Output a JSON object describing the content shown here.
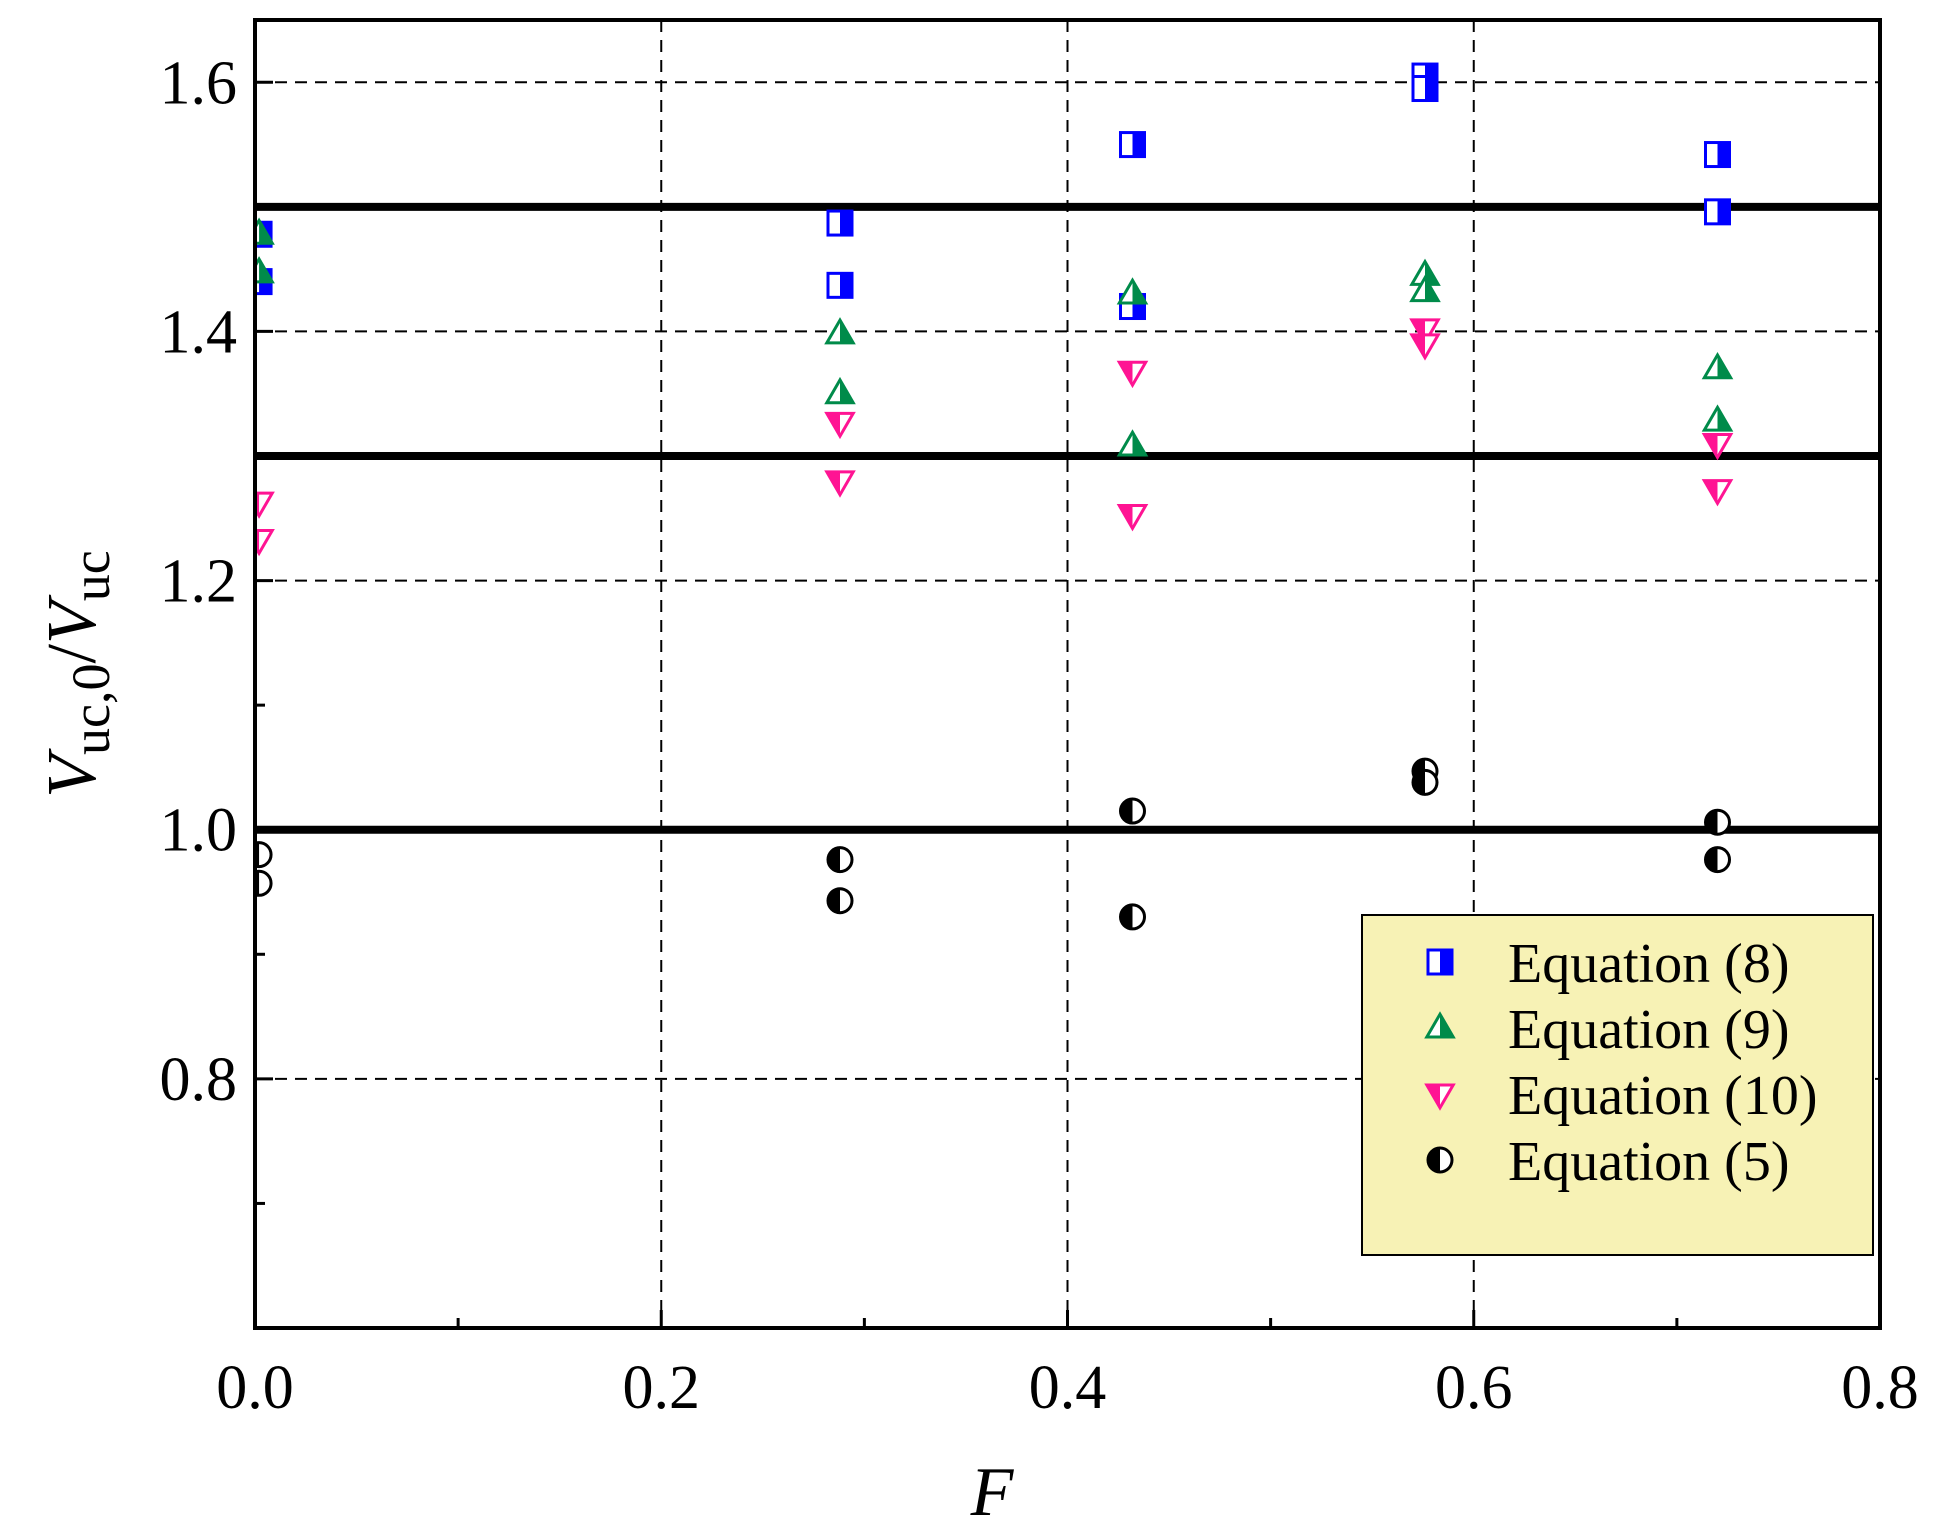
{
  "chart_data": {
    "type": "scatter",
    "x_range": [
      0,
      0.8
    ],
    "y_range": [
      0.6,
      1.65
    ],
    "x_ticks": [
      "0.0",
      "0.2",
      "0.4",
      "0.6",
      "0.8"
    ],
    "y_ticks": [
      "0.8",
      "1.0",
      "1.2",
      "1.4",
      "1.6"
    ],
    "xlabel": "F",
    "ylabel": {
      "main": "V",
      "sub1": "uc,0",
      "sep": "/",
      "main2": "V",
      "sub2": "uc"
    },
    "grid": "dashed",
    "reference_lines": [
      1.0,
      1.3,
      1.5
    ],
    "legend_position": "bottom-right",
    "legend_background": "#f7f2b5",
    "series": [
      {
        "name": "Equation (8)",
        "marker": "half-filled-square",
        "color": "#0000ff",
        "points": [
          [
            0.002,
            1.478
          ],
          [
            0.002,
            1.44
          ],
          [
            0.288,
            1.487
          ],
          [
            0.288,
            1.437
          ],
          [
            0.432,
            1.55
          ],
          [
            0.432,
            1.42
          ],
          [
            0.576,
            1.605
          ],
          [
            0.576,
            1.595
          ],
          [
            0.72,
            1.542
          ],
          [
            0.72,
            1.496
          ]
        ]
      },
      {
        "name": "Equation (9)",
        "marker": "half-filled-triangle-up",
        "color": "#008b4a",
        "points": [
          [
            0.002,
            1.478
          ],
          [
            0.002,
            1.447
          ],
          [
            0.288,
            1.398
          ],
          [
            0.288,
            1.35
          ],
          [
            0.432,
            1.43
          ],
          [
            0.432,
            1.308
          ],
          [
            0.576,
            1.445
          ],
          [
            0.576,
            1.432
          ],
          [
            0.72,
            1.37
          ],
          [
            0.72,
            1.328
          ]
        ]
      },
      {
        "name": "Equation (10)",
        "marker": "half-filled-triangle-down",
        "color": "#ff1493",
        "points": [
          [
            0.002,
            1.263
          ],
          [
            0.002,
            1.233
          ],
          [
            0.288,
            1.327
          ],
          [
            0.288,
            1.28
          ],
          [
            0.432,
            1.368
          ],
          [
            0.432,
            1.253
          ],
          [
            0.576,
            1.402
          ],
          [
            0.576,
            1.39
          ],
          [
            0.72,
            1.31
          ],
          [
            0.72,
            1.273
          ]
        ]
      },
      {
        "name": "Equation (5)",
        "marker": "half-filled-circle",
        "color": "#000000",
        "points": [
          [
            0.002,
            0.98
          ],
          [
            0.002,
            0.957
          ],
          [
            0.288,
            0.976
          ],
          [
            0.288,
            0.943
          ],
          [
            0.432,
            1.015
          ],
          [
            0.432,
            0.93
          ],
          [
            0.576,
            1.047
          ],
          [
            0.576,
            1.038
          ],
          [
            0.72,
            1.006
          ],
          [
            0.72,
            0.976
          ]
        ]
      }
    ]
  }
}
